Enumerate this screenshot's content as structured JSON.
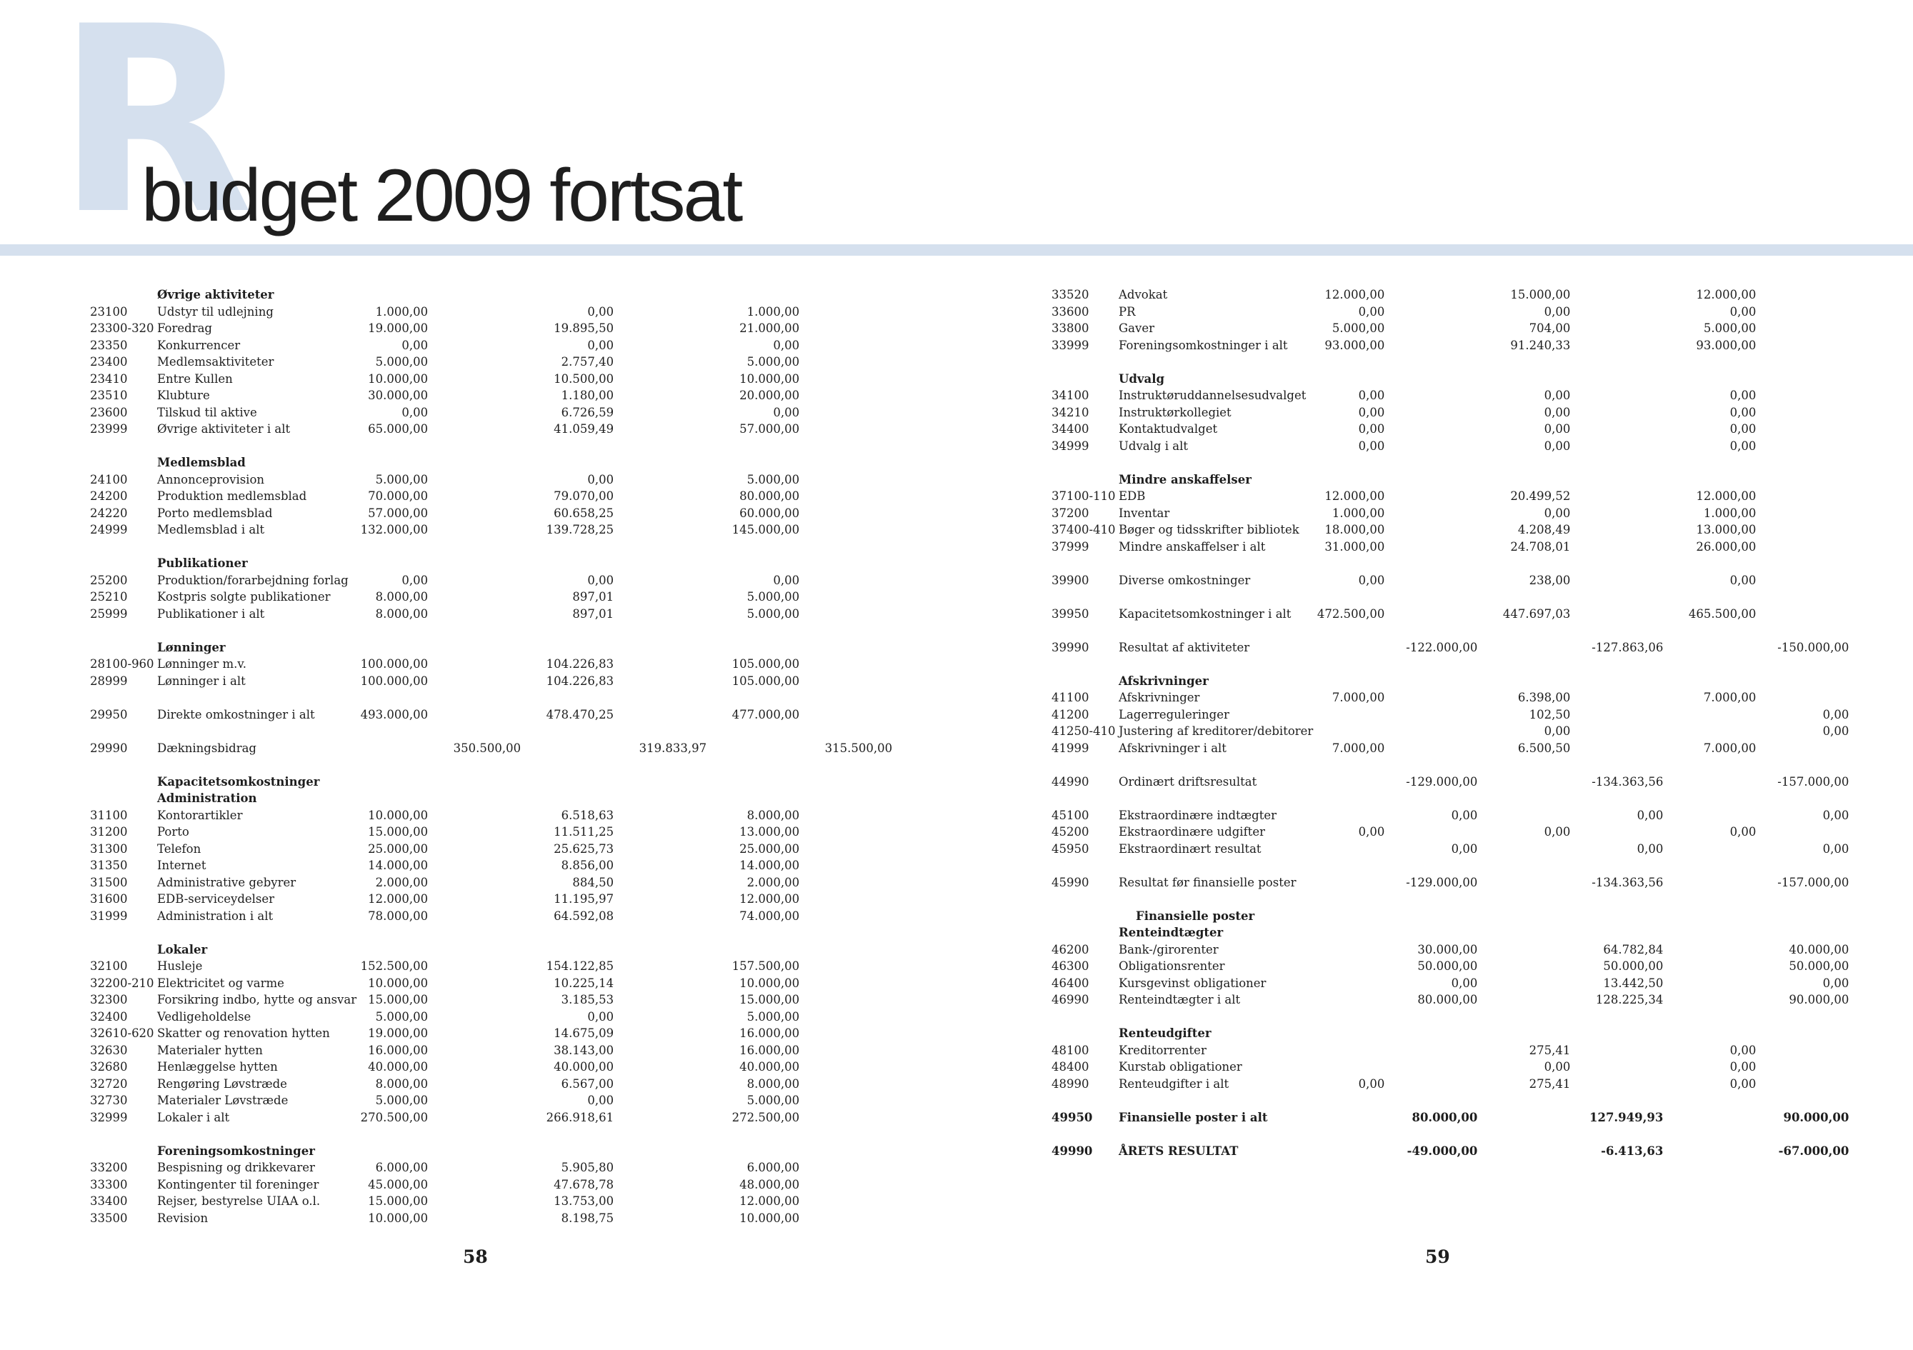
{
  "colors": {
    "accent": "#d5e0ee",
    "text": "#1e1e1e"
  },
  "header": {
    "drop_letter": "R",
    "title": "budget 2009 fortsat"
  },
  "left": {
    "page_number": "58",
    "rows": [
      {
        "kind": "heading",
        "label": "Øvrige aktiviteter"
      },
      {
        "code": "23100",
        "label": "Udstyr til udlejning",
        "a": "1.000,00",
        "b": "0,00",
        "c": "1.000,00"
      },
      {
        "code": "23300-320",
        "label": "Foredrag",
        "a": "19.000,00",
        "b": "19.895,50",
        "c": "21.000,00"
      },
      {
        "code": "23350",
        "label": "Konkurrencer",
        "a": "0,00",
        "b": "0,00",
        "c": "0,00"
      },
      {
        "code": "23400",
        "label": "Medlemsaktiviteter",
        "a": "5.000,00",
        "b": "2.757,40",
        "c": "5.000,00"
      },
      {
        "code": "23410",
        "label": "Entre Kullen",
        "a": "10.000,00",
        "b": "10.500,00",
        "c": "10.000,00"
      },
      {
        "code": "23510",
        "label": "Klubture",
        "a": "30.000,00",
        "b": "1.180,00",
        "c": "20.000,00"
      },
      {
        "code": "23600",
        "label": "Tilskud til aktive",
        "a": "0,00",
        "b": "6.726,59",
        "c": "0,00"
      },
      {
        "code": "23999",
        "label": "Øvrige aktiviteter i alt",
        "a": "65.000,00",
        "b": "41.059,49",
        "c": "57.000,00"
      },
      {
        "kind": "blank"
      },
      {
        "kind": "heading",
        "label": "Medlemsblad"
      },
      {
        "code": "24100",
        "label": "Annonceprovision",
        "a": "5.000,00",
        "b": "0,00",
        "c": "5.000,00"
      },
      {
        "code": "24200",
        "label": "Produktion medlemsblad",
        "a": "70.000,00",
        "b": "79.070,00",
        "c": "80.000,00"
      },
      {
        "code": "24220",
        "label": "Porto medlemsblad",
        "a": "57.000,00",
        "b": "60.658,25",
        "c": "60.000,00"
      },
      {
        "code": "24999",
        "label": "Medlemsblad i alt",
        "a": "132.000,00",
        "b": "139.728,25",
        "c": "145.000,00"
      },
      {
        "kind": "blank"
      },
      {
        "kind": "heading",
        "label": "Publikationer"
      },
      {
        "code": "25200",
        "label": "Produktion/forarbejdning forlag",
        "a": "0,00",
        "b": "0,00",
        "c": "0,00"
      },
      {
        "code": "25210",
        "label": "Kostpris solgte publikationer",
        "a": "8.000,00",
        "b": "897,01",
        "c": "5.000,00"
      },
      {
        "code": "25999",
        "label": "Publikationer i alt",
        "a": "8.000,00",
        "b": "897,01",
        "c": "5.000,00"
      },
      {
        "kind": "blank"
      },
      {
        "kind": "heading",
        "label": "Lønninger"
      },
      {
        "code": "28100-960",
        "label": "Lønninger m.v.",
        "a": "100.000,00",
        "b": "104.226,83",
        "c": "105.000,00"
      },
      {
        "code": "28999",
        "label": "Lønninger i alt",
        "a": "100.000,00",
        "b": "104.226,83",
        "c": "105.000,00"
      },
      {
        "kind": "blank"
      },
      {
        "code": "29950",
        "label": "Direkte omkostninger i alt",
        "a": "493.000,00",
        "b": "478.470,25",
        "c": "477.000,00"
      },
      {
        "kind": "blank"
      },
      {
        "code": "29990",
        "label": "Dækningsbidrag",
        "a2": "350.500,00",
        "b2": "319.833,97",
        "c2": "315.500,00"
      },
      {
        "kind": "blank"
      },
      {
        "kind": "heading",
        "label": "Kapacitetsomkostninger"
      },
      {
        "kind": "heading",
        "label": "Administration"
      },
      {
        "code": "31100",
        "label": "Kontorartikler",
        "a": "10.000,00",
        "b": "6.518,63",
        "c": "8.000,00"
      },
      {
        "code": "31200",
        "label": "Porto",
        "a": "15.000,00",
        "b": "11.511,25",
        "c": "13.000,00"
      },
      {
        "code": "31300",
        "label": "Telefon",
        "a": "25.000,00",
        "b": "25.625,73",
        "c": "25.000,00"
      },
      {
        "code": "31350",
        "label": "Internet",
        "a": "14.000,00",
        "b": "8.856,00",
        "c": "14.000,00"
      },
      {
        "code": "31500",
        "label": "Administrative gebyrer",
        "a": "2.000,00",
        "b": "884,50",
        "c": "2.000,00"
      },
      {
        "code": "31600",
        "label": "EDB-serviceydelser",
        "a": "12.000,00",
        "b": "11.195,97",
        "c": "12.000,00"
      },
      {
        "code": "31999",
        "label": "Administration i alt",
        "a": "78.000,00",
        "b": "64.592,08",
        "c": "74.000,00"
      },
      {
        "kind": "blank"
      },
      {
        "kind": "heading",
        "label": "Lokaler"
      },
      {
        "code": "32100",
        "label": "Husleje",
        "a": "152.500,00",
        "b": "154.122,85",
        "c": "157.500,00"
      },
      {
        "code": "32200-210",
        "label": "Elektricitet og varme",
        "a": "10.000,00",
        "b": "10.225,14",
        "c": "10.000,00"
      },
      {
        "code": "32300",
        "label": "Forsikring indbo, hytte og ansvar",
        "a": "15.000,00",
        "b": "3.185,53",
        "c": "15.000,00"
      },
      {
        "code": "32400",
        "label": "Vedligeholdelse",
        "a": "5.000,00",
        "b": "0,00",
        "c": "5.000,00"
      },
      {
        "code": "32610-620",
        "label": "Skatter og renovation hytten",
        "a": "19.000,00",
        "b": "14.675,09",
        "c": "16.000,00"
      },
      {
        "code": "32630",
        "label": "Materialer hytten",
        "a": "16.000,00",
        "b": "38.143,00",
        "c": "16.000,00"
      },
      {
        "code": "32680",
        "label": "Henlæggelse hytten",
        "a": "40.000,00",
        "b": "40.000,00",
        "c": "40.000,00"
      },
      {
        "code": "32720",
        "label": "Rengøring Løvstræde",
        "a": "8.000,00",
        "b": "6.567,00",
        "c": "8.000,00"
      },
      {
        "code": "32730",
        "label": "Materialer Løvstræde",
        "a": "5.000,00",
        "b": "0,00",
        "c": "5.000,00"
      },
      {
        "code": "32999",
        "label": "Lokaler i alt",
        "a": "270.500,00",
        "b": "266.918,61",
        "c": "272.500,00"
      },
      {
        "kind": "blank"
      },
      {
        "kind": "heading",
        "label": "Foreningsomkostninger"
      },
      {
        "code": "33200",
        "label": "Bespisning og drikkevarer",
        "a": "6.000,00",
        "b": "5.905,80",
        "c": "6.000,00"
      },
      {
        "code": "33300",
        "label": "Kontingenter til foreninger",
        "a": "45.000,00",
        "b": "47.678,78",
        "c": "48.000,00"
      },
      {
        "code": "33400",
        "label": "Rejser, bestyrelse UIAA o.l.",
        "a": "15.000,00",
        "b": "13.753,00",
        "c": "12.000,00"
      },
      {
        "code": "33500",
        "label": "Revision",
        "a": "10.000,00",
        "b": "8.198,75",
        "c": "10.000,00"
      }
    ]
  },
  "right": {
    "page_number": "59",
    "rows": [
      {
        "code": "33520",
        "label": "Advokat",
        "a": "12.000,00",
        "b": "15.000,00",
        "c": "12.000,00"
      },
      {
        "code": "33600",
        "label": "PR",
        "a": "0,00",
        "b": "0,00",
        "c": "0,00"
      },
      {
        "code": "33800",
        "label": "Gaver",
        "a": "5.000,00",
        "b": "704,00",
        "c": "5.000,00"
      },
      {
        "code": "33999",
        "label": "Foreningsomkostninger i alt",
        "a": "93.000,00",
        "b": "91.240,33",
        "c": "93.000,00"
      },
      {
        "kind": "blank"
      },
      {
        "kind": "heading",
        "label": "Udvalg"
      },
      {
        "code": "34100",
        "label": "Instruktøruddannelsesudvalget",
        "a": "0,00",
        "b": "0,00",
        "c": "0,00"
      },
      {
        "code": "34210",
        "label": "Instruktørkollegiet",
        "a": "0,00",
        "b": "0,00",
        "c": "0,00"
      },
      {
        "code": "34400",
        "label": "Kontaktudvalget",
        "a": "0,00",
        "b": "0,00",
        "c": "0,00"
      },
      {
        "code": "34999",
        "label": "Udvalg i alt",
        "a": "0,00",
        "b": "0,00",
        "c": "0,00"
      },
      {
        "kind": "blank"
      },
      {
        "kind": "heading",
        "label": "Mindre anskaffelser"
      },
      {
        "code": "37100-110",
        "label": "EDB",
        "a": "12.000,00",
        "b": "20.499,52",
        "c": "12.000,00"
      },
      {
        "code": "37200",
        "label": "Inventar",
        "a": "1.000,00",
        "b": "0,00",
        "c": "1.000,00"
      },
      {
        "code": "37400-410",
        "label": "Bøger og tidsskrifter bibliotek",
        "a": "18.000,00",
        "b": "4.208,49",
        "c": "13.000,00"
      },
      {
        "code": "37999",
        "label": "Mindre anskaffelser i alt",
        "a": "31.000,00",
        "b": "24.708,01",
        "c": "26.000,00"
      },
      {
        "kind": "blank"
      },
      {
        "code": "39900",
        "label": "Diverse omkostninger",
        "a": "0,00",
        "b": "238,00",
        "c": "0,00"
      },
      {
        "kind": "blank"
      },
      {
        "code": "39950",
        "label": "Kapacitetsomkostninger i alt",
        "a": "472.500,00",
        "b": "447.697,03",
        "c": "465.500,00"
      },
      {
        "kind": "blank"
      },
      {
        "code": "39990",
        "label": "Resultat af aktiviteter",
        "a2": "-122.000,00",
        "b2": "-127.863,06",
        "c2": "-150.000,00"
      },
      {
        "kind": "blank"
      },
      {
        "kind": "heading",
        "label": "Afskrivninger"
      },
      {
        "code": "41100",
        "label": "Afskrivninger",
        "a": "7.000,00",
        "b": "6.398,00",
        "c": "7.000,00"
      },
      {
        "code": "41200",
        "label": "Lagerreguleringer",
        "b": "102,50",
        "c2": "0,00"
      },
      {
        "code": "41250-410",
        "label": "Justering af kreditorer/debitorer",
        "b": "0,00",
        "c2": "0,00"
      },
      {
        "code": "41999",
        "label": "Afskrivninger i alt",
        "a": "7.000,00",
        "b": "6.500,50",
        "c": "7.000,00"
      },
      {
        "kind": "blank"
      },
      {
        "code": "44990",
        "label": "Ordinært driftsresultat",
        "a2": "-129.000,00",
        "b2": "-134.363,56",
        "c2": "-157.000,00"
      },
      {
        "kind": "blank"
      },
      {
        "code": "45100",
        "label": "Ekstraordinære indtægter",
        "a2": "0,00",
        "b2": "0,00",
        "c2": "0,00"
      },
      {
        "code": "45200",
        "label": "Ekstraordinære udgifter",
        "a": "0,00",
        "b": "0,00",
        "c": "0,00"
      },
      {
        "code": "45950",
        "label": "Ekstraordinært resultat",
        "a2": "0,00",
        "b2": "0,00",
        "c2": "0,00"
      },
      {
        "kind": "blank"
      },
      {
        "code": "45990",
        "label": "Resultat før finansielle poster",
        "a2": "-129.000,00",
        "b2": "-134.363,56",
        "c2": "-157.000,00"
      },
      {
        "kind": "blank"
      },
      {
        "kind": "subheading",
        "label": "Finansielle poster"
      },
      {
        "kind": "heading",
        "label": "Renteindtægter"
      },
      {
        "code": "46200",
        "label": "Bank-/girorenter",
        "a2": "30.000,00",
        "b2": "64.782,84",
        "c2": "40.000,00"
      },
      {
        "code": "46300",
        "label": "Obligationsrenter",
        "a2": "50.000,00",
        "b2": "50.000,00",
        "c2": "50.000,00"
      },
      {
        "code": "46400",
        "label": "Kursgevinst obligationer",
        "a2": "0,00",
        "b2": "13.442,50",
        "c2": "0,00"
      },
      {
        "code": "46990",
        "label": "Renteindtægter i alt",
        "a2": "80.000,00",
        "b2": "128.225,34",
        "c2": "90.000,00"
      },
      {
        "kind": "blank"
      },
      {
        "kind": "heading",
        "label": "Renteudgifter"
      },
      {
        "code": "48100",
        "label": "Kreditorrenter",
        "b": "275,41",
        "c": "0,00"
      },
      {
        "code": "48400",
        "label": "Kurstab obligationer",
        "b": "0,00",
        "c": "0,00"
      },
      {
        "code": "48990",
        "label": "Renteudgifter i alt",
        "a": "0,00",
        "b": "275,41",
        "c": "0,00"
      },
      {
        "kind": "blank"
      },
      {
        "kind": "total",
        "code": "49950",
        "label": "Finansielle poster i alt",
        "a2": "80.000,00",
        "b2": "127.949,93",
        "c2": "90.000,00"
      },
      {
        "kind": "blank"
      },
      {
        "kind": "total",
        "code": "49990",
        "label": "ÅRETS RESULTAT",
        "a2": "-49.000,00",
        "b2": "-6.413,63",
        "c2": "-67.000,00"
      }
    ]
  }
}
